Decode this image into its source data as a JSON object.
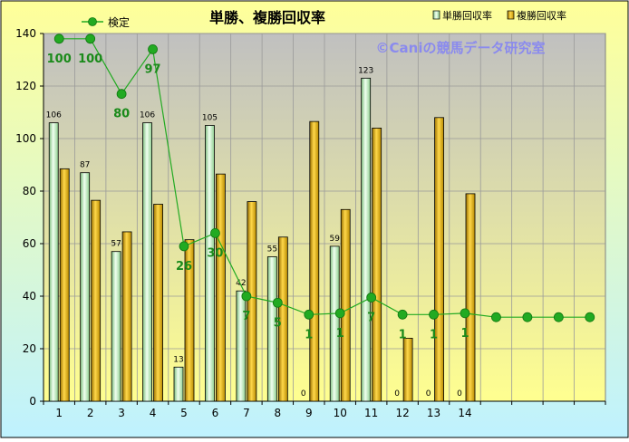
{
  "chart_data": {
    "type": "bar",
    "title": "単勝、複勝回収率",
    "watermark": "©Caniの競馬データ研究室",
    "categories": [
      "1",
      "2",
      "3",
      "4",
      "5",
      "6",
      "7",
      "8",
      "9",
      "10",
      "11",
      "12",
      "13",
      "14"
    ],
    "ylim": [
      0,
      140
    ],
    "yticks": [
      0,
      20,
      40,
      60,
      80,
      100,
      120,
      140
    ],
    "grid": true,
    "legend_position": "top-right",
    "series": [
      {
        "name": "単勝回収率",
        "color": "#c8f0c0",
        "values": [
          106,
          87,
          57,
          106,
          13,
          105,
          42,
          55,
          0,
          59,
          123,
          0,
          0,
          0
        ],
        "labels": [
          "106",
          "87",
          "57",
          "106",
          "13",
          "105",
          "42",
          "55",
          "0",
          "59",
          "123",
          "0",
          "0",
          "0"
        ]
      },
      {
        "name": "複勝回収率",
        "color": "#f0b800",
        "values": [
          88.5,
          76.5,
          64.5,
          75,
          61.5,
          86.5,
          76,
          62.5,
          106.5,
          73,
          104,
          24,
          108,
          79
        ]
      }
    ],
    "line_series": {
      "name": "検定",
      "color": "#22aa22",
      "x": [
        "1",
        "2",
        "3",
        "4",
        "5",
        "6",
        "7",
        "8",
        "9",
        "10",
        "11",
        "12",
        "13",
        "14",
        "15",
        "16",
        "17",
        "18"
      ],
      "values": [
        138,
        138,
        117,
        134,
        59,
        64,
        40,
        37.5,
        33,
        33.5,
        39.5,
        33,
        33,
        33.5,
        32,
        32,
        32,
        32
      ],
      "labels": [
        "100",
        "100",
        "80",
        "97",
        "26",
        "30",
        "7",
        "5",
        "1",
        "1",
        "7",
        "1",
        "1",
        "1",
        "",
        "",
        "",
        ""
      ]
    },
    "colors": {
      "plot_bg_top": "#c0c0c0",
      "plot_bg_bottom": "#ffff90",
      "page_bg_top": "#ffff99",
      "page_bg_bottom": "#bff2ff",
      "watermark": "#8a8aee"
    }
  }
}
